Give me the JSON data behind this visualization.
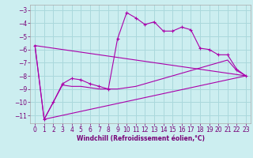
{
  "xlabel": "Windchill (Refroidissement éolien,°C)",
  "background_color": "#cceef0",
  "grid_color": "#aad8dc",
  "line_color": "#aa00aa",
  "xlim": [
    -0.5,
    23.5
  ],
  "ylim": [
    -11.6,
    -2.6
  ],
  "yticks": [
    -11,
    -10,
    -9,
    -8,
    -7,
    -6,
    -5,
    -4,
    -3
  ],
  "xticks": [
    0,
    1,
    2,
    3,
    4,
    5,
    6,
    7,
    8,
    9,
    10,
    11,
    12,
    13,
    14,
    15,
    16,
    17,
    18,
    19,
    20,
    21,
    22,
    23
  ],
  "series1_x": [
    0,
    1,
    2,
    3,
    4,
    5,
    6,
    7,
    8,
    9,
    10,
    11,
    12,
    13,
    14,
    15,
    16,
    17,
    18,
    19,
    20,
    21,
    22,
    23
  ],
  "series1_y": [
    -5.7,
    -11.3,
    -10.0,
    -8.6,
    -8.2,
    -8.3,
    -8.6,
    -8.8,
    -9.0,
    -5.2,
    -3.2,
    -3.6,
    -4.1,
    -3.9,
    -4.6,
    -4.6,
    -4.3,
    -4.5,
    -5.9,
    -6.0,
    -6.4,
    -6.4,
    -7.5,
    -8.0
  ],
  "series2_x": [
    0,
    1,
    2,
    3,
    4,
    5,
    6,
    7,
    8,
    9,
    10,
    11,
    12,
    13,
    14,
    15,
    16,
    17,
    18,
    19,
    20,
    21,
    22,
    23
  ],
  "series2_y": [
    -5.7,
    -11.3,
    -10.0,
    -8.7,
    -8.8,
    -8.8,
    -8.9,
    -9.0,
    -9.0,
    -9.0,
    -8.9,
    -8.8,
    -8.6,
    -8.4,
    -8.2,
    -8.0,
    -7.8,
    -7.6,
    -7.4,
    -7.2,
    -7.0,
    -6.8,
    -7.6,
    -8.0
  ],
  "series3_x": [
    0,
    23
  ],
  "series3_y": [
    -5.7,
    -8.0
  ],
  "series4_x": [
    1,
    23
  ],
  "series4_y": [
    -11.3,
    -8.0
  ],
  "tick_fontsize": 5.5,
  "xlabel_fontsize": 5.5
}
